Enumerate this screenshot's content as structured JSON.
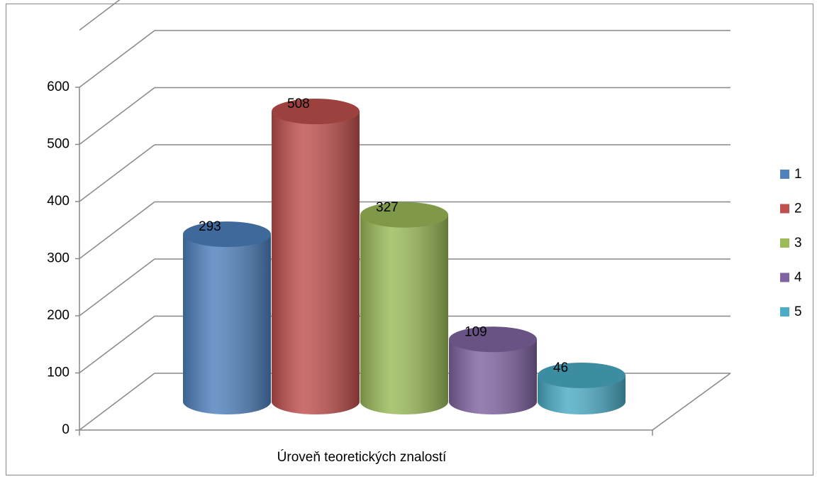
{
  "chart_data": {
    "type": "bar3d-cylinder",
    "categories": [
      "Úroveň teoretických znalostí"
    ],
    "series": [
      {
        "name": "1",
        "color": "#4f81bd",
        "values": [
          293
        ]
      },
      {
        "name": "2",
        "color": "#c0504d",
        "values": [
          508
        ]
      },
      {
        "name": "3",
        "color": "#9bbb59",
        "values": [
          327
        ]
      },
      {
        "name": "4",
        "color": "#8064a2",
        "values": [
          109
        ]
      },
      {
        "name": "5",
        "color": "#4bacc6",
        "values": [
          46
        ]
      }
    ],
    "ylim": [
      0,
      700
    ],
    "yticks": [
      0,
      100,
      200,
      300,
      400,
      500,
      600
    ],
    "grid": true,
    "legend": "right"
  }
}
